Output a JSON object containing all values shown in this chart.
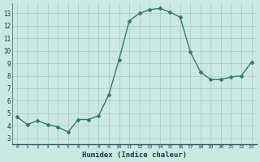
{
  "x": [
    0,
    1,
    2,
    3,
    4,
    5,
    6,
    7,
    8,
    9,
    10,
    11,
    12,
    13,
    14,
    15,
    16,
    17,
    18,
    19,
    20,
    21,
    22,
    23
  ],
  "y": [
    4.7,
    4.1,
    4.4,
    4.1,
    3.9,
    3.5,
    4.5,
    4.5,
    4.8,
    6.5,
    9.3,
    12.4,
    13.0,
    13.3,
    13.4,
    13.1,
    12.7,
    9.9,
    8.3,
    7.7,
    7.7,
    7.9,
    8.0,
    9.1
  ],
  "xlabel": "Humidex (Indice chaleur)",
  "line_color": "#2e7d6e",
  "bg_color": "#cce8e4",
  "grid_major_color": "#b0ceca",
  "grid_minor_color": "#c0deda",
  "xlim": [
    -0.5,
    23.5
  ],
  "ylim": [
    2.5,
    13.8
  ],
  "yticks": [
    3,
    4,
    5,
    6,
    7,
    8,
    9,
    10,
    11,
    12,
    13
  ],
  "xticks": [
    0,
    1,
    2,
    3,
    4,
    5,
    6,
    7,
    8,
    9,
    10,
    11,
    12,
    13,
    14,
    15,
    16,
    17,
    18,
    19,
    20,
    21,
    22,
    23
  ]
}
